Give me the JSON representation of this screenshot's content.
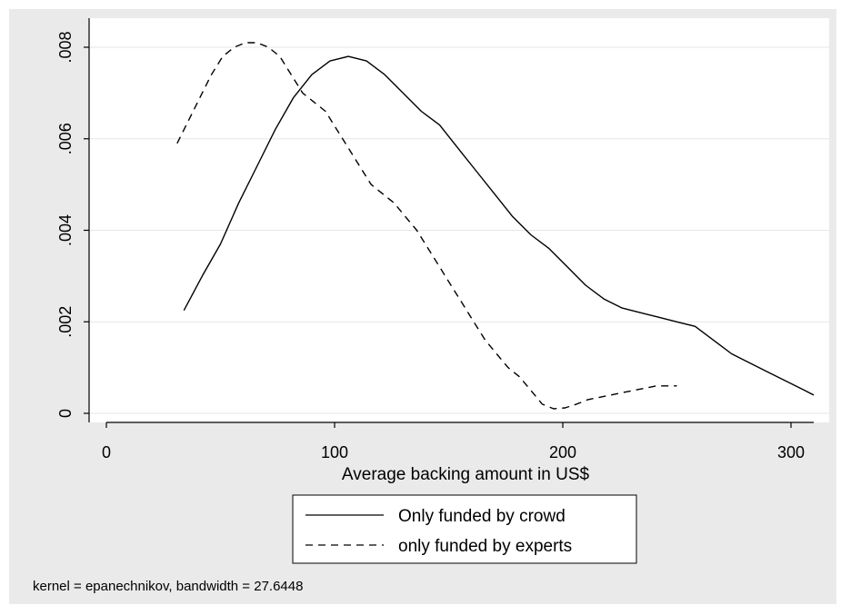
{
  "chart_data": {
    "type": "line",
    "title": "",
    "xlabel": "Average backing amount in US$",
    "ylabel": "",
    "xlim": [
      0,
      310
    ],
    "ylim": [
      0,
      0.0081
    ],
    "x_ticks": [
      {
        "value": 0,
        "label": "0"
      },
      {
        "value": 100,
        "label": "100"
      },
      {
        "value": 200,
        "label": "200"
      },
      {
        "value": 300,
        "label": "300"
      }
    ],
    "y_ticks": [
      {
        "value": 0,
        "label": "0"
      },
      {
        "value": 0.002,
        "label": ".002"
      },
      {
        "value": 0.004,
        "label": ".004"
      },
      {
        "value": 0.006,
        "label": ".006"
      },
      {
        "value": 0.008,
        "label": ".008"
      }
    ],
    "grid": true,
    "legend_position": "bottom",
    "note": "kernel = epanechnikov, bandwidth = 27.6448",
    "series": [
      {
        "name": "Only funded by crowd",
        "style": "solid",
        "color": "#000000",
        "points": [
          [
            34,
            0.00225
          ],
          [
            42,
            0.003
          ],
          [
            50,
            0.0037
          ],
          [
            58,
            0.0046
          ],
          [
            66,
            0.0054
          ],
          [
            74,
            0.0062
          ],
          [
            82,
            0.0069
          ],
          [
            90,
            0.0074
          ],
          [
            98,
            0.0077
          ],
          [
            106,
            0.0078
          ],
          [
            114,
            0.0077
          ],
          [
            122,
            0.0074
          ],
          [
            130,
            0.007
          ],
          [
            138,
            0.0066
          ],
          [
            146,
            0.0063
          ],
          [
            154,
            0.0058
          ],
          [
            162,
            0.0053
          ],
          [
            170,
            0.0048
          ],
          [
            178,
            0.0043
          ],
          [
            186,
            0.0039
          ],
          [
            194,
            0.0036
          ],
          [
            202,
            0.0032
          ],
          [
            210,
            0.0028
          ],
          [
            218,
            0.0025
          ],
          [
            226,
            0.0023
          ],
          [
            234,
            0.0022
          ],
          [
            242,
            0.0021
          ],
          [
            250,
            0.002
          ],
          [
            258,
            0.0019
          ],
          [
            266,
            0.0016
          ],
          [
            274,
            0.0013
          ],
          [
            282,
            0.0011
          ],
          [
            290,
            0.0009
          ],
          [
            298,
            0.0007
          ],
          [
            306,
            0.0005
          ],
          [
            310,
            0.0004
          ]
        ]
      },
      {
        "name": "only funded by experts",
        "style": "dashed",
        "color": "#000000",
        "points": [
          [
            31,
            0.0059
          ],
          [
            36,
            0.0064
          ],
          [
            41,
            0.0069
          ],
          [
            46,
            0.0074
          ],
          [
            51,
            0.0078
          ],
          [
            56,
            0.008
          ],
          [
            61,
            0.0081
          ],
          [
            66,
            0.0081
          ],
          [
            71,
            0.008
          ],
          [
            76,
            0.0078
          ],
          [
            81,
            0.0074
          ],
          [
            86,
            0.007
          ],
          [
            91,
            0.0068
          ],
          [
            96,
            0.0066
          ],
          [
            101,
            0.0062
          ],
          [
            106,
            0.0058
          ],
          [
            111,
            0.0054
          ],
          [
            116,
            0.005
          ],
          [
            121,
            0.0048
          ],
          [
            126,
            0.0046
          ],
          [
            131,
            0.0043
          ],
          [
            136,
            0.004
          ],
          [
            141,
            0.0036
          ],
          [
            146,
            0.0032
          ],
          [
            151,
            0.0028
          ],
          [
            156,
            0.0024
          ],
          [
            161,
            0.002
          ],
          [
            166,
            0.0016
          ],
          [
            171,
            0.0013
          ],
          [
            176,
            0.001
          ],
          [
            181,
            0.0008
          ],
          [
            186,
            0.0005
          ],
          [
            191,
            0.0002
          ],
          [
            196,
            0.0001
          ],
          [
            201,
            0.00012
          ],
          [
            206,
            0.0002
          ],
          [
            211,
            0.0003
          ],
          [
            216,
            0.00035
          ],
          [
            221,
            0.0004
          ],
          [
            226,
            0.00045
          ],
          [
            231,
            0.0005
          ],
          [
            236,
            0.00055
          ],
          [
            241,
            0.0006
          ],
          [
            246,
            0.0006
          ],
          [
            250,
            0.0006
          ]
        ]
      }
    ]
  }
}
